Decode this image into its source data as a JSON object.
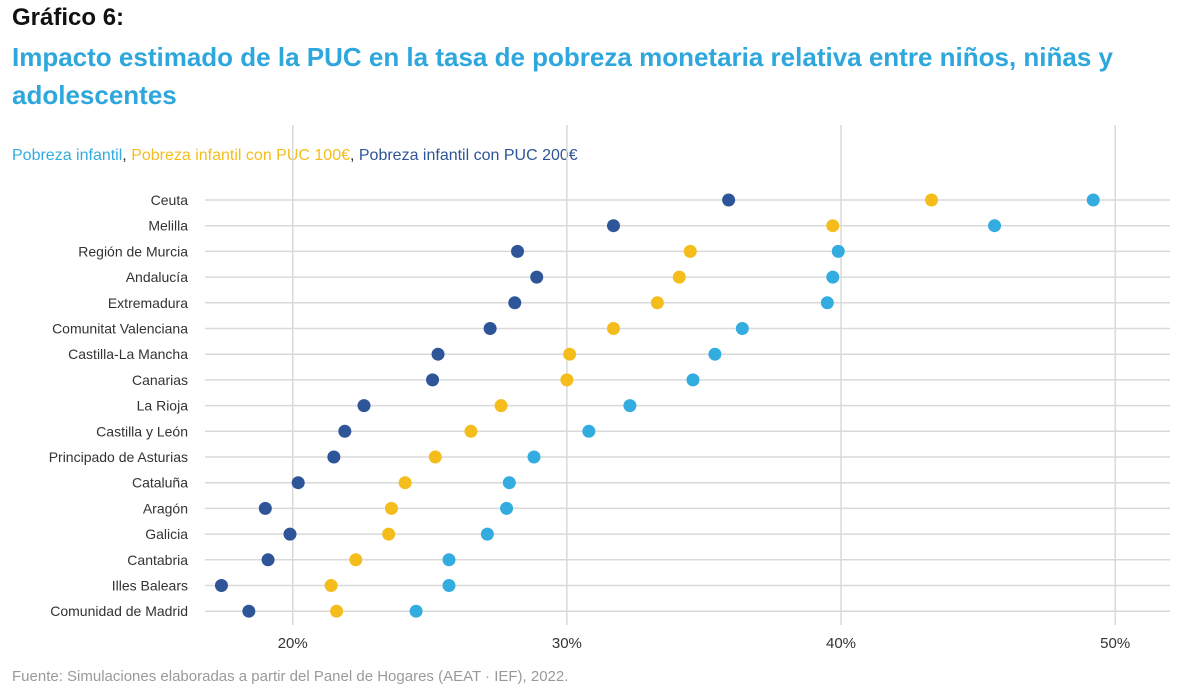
{
  "kicker": "Gráfico 6:",
  "title": "Impacto estimado de la PUC en la tasa de pobreza monetaria relativa entre niños, niñas y adolescentes",
  "source": "Fuente: Simulaciones elaboradas a partir del Panel de Hogares (AEAT · IEF), 2022.",
  "colors": {
    "title": "#2ea7dc",
    "series1": "#33acdf",
    "series2": "#f4bd1c",
    "series3": "#2e5597",
    "grid": "#d9d9d9"
  },
  "legend": {
    "items": [
      {
        "label": "Pobreza infantil",
        "color": "#33acdf"
      },
      {
        "label": "Pobreza infantil con PUC 100€",
        "color": "#f4bd1c"
      },
      {
        "label": "Pobreza infantil con PUC 200€",
        "color": "#2e5597"
      }
    ],
    "separator": ", "
  },
  "chart_data": {
    "type": "scatter",
    "title": "Impacto estimado de la PUC en la tasa de pobreza monetaria relativa entre niños, niñas y adolescentes",
    "xlabel": "",
    "ylabel": "",
    "xlim": [
      16.8,
      52.0
    ],
    "xticks": [
      20,
      30,
      40,
      50
    ],
    "xtick_labels": [
      "20%",
      "30%",
      "40%",
      "50%"
    ],
    "grid": true,
    "categories": [
      "Ceuta",
      "Melilla",
      "Región de Murcia",
      "Andalucía",
      "Extremadura",
      "Comunitat Valenciana",
      "Castilla-La Mancha",
      "Canarias",
      "La Rioja",
      "Castilla y León",
      "Principado de Asturias",
      "Cataluña",
      "Aragón",
      "Galicia",
      "Cantabria",
      "Illes Balears",
      "Comunidad de Madrid"
    ],
    "series": [
      {
        "name": "Pobreza infantil",
        "color": "#33acdf",
        "values": [
          49.2,
          45.6,
          39.9,
          39.7,
          39.5,
          36.4,
          35.4,
          34.6,
          32.3,
          30.8,
          28.8,
          27.9,
          27.8,
          27.1,
          25.7,
          25.7,
          24.5
        ]
      },
      {
        "name": "Pobreza infantil con PUC 100€",
        "color": "#f4bd1c",
        "values": [
          43.3,
          39.7,
          34.5,
          34.1,
          33.3,
          31.7,
          30.1,
          30.0,
          27.6,
          26.5,
          25.2,
          24.1,
          23.6,
          23.5,
          22.3,
          21.4,
          21.6
        ]
      },
      {
        "name": "Pobreza infantil con PUC 200€",
        "color": "#2e5597",
        "values": [
          35.9,
          31.7,
          28.2,
          28.9,
          28.1,
          27.2,
          25.3,
          25.1,
          22.6,
          21.9,
          21.5,
          20.2,
          19.0,
          19.9,
          19.1,
          17.4,
          18.4
        ]
      }
    ]
  }
}
